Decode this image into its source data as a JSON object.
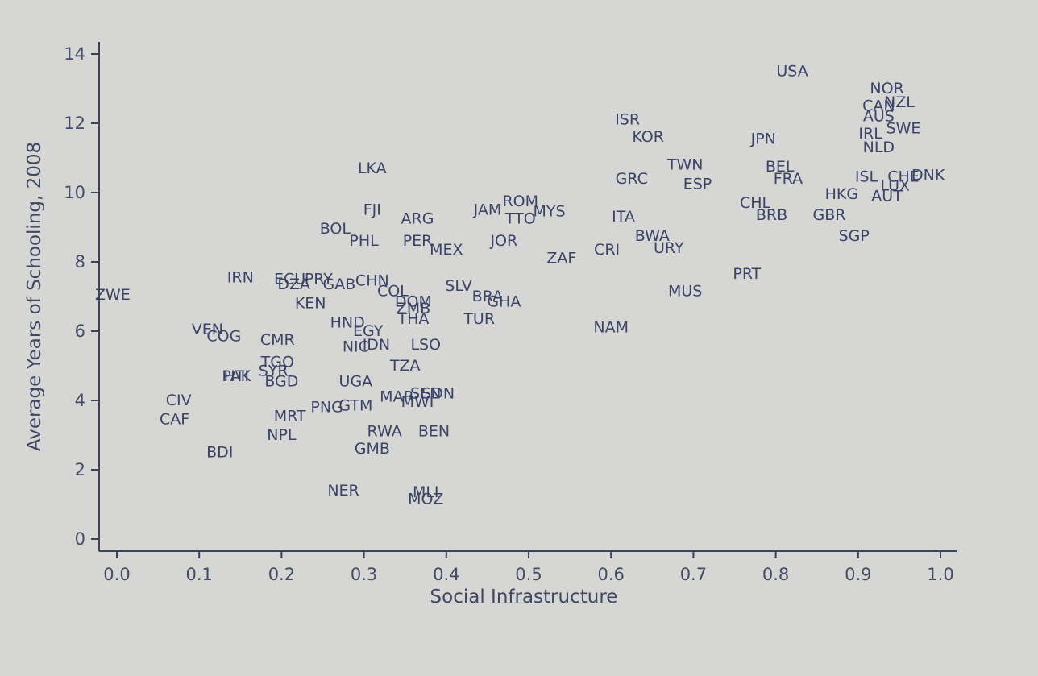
{
  "chart_data": {
    "type": "scatter",
    "title": "",
    "xlabel": "Social Infrastructure",
    "ylabel": "Average Years of Schooling, 2008",
    "xlim": [
      -0.02,
      1.02
    ],
    "ylim": [
      -0.35,
      14.4
    ],
    "xticks": [
      "0.0",
      "0.1",
      "0.2",
      "0.3",
      "0.4",
      "0.5",
      "0.6",
      "0.7",
      "0.8",
      "0.9",
      "1.0"
    ],
    "yticks": [
      "0",
      "2",
      "4",
      "6",
      "8",
      "10",
      "12",
      "14"
    ],
    "grid": false,
    "points": [
      {
        "label": "USA",
        "x": 0.82,
        "y": 13.5
      },
      {
        "label": "NOR",
        "x": 0.935,
        "y": 13.0
      },
      {
        "label": "NZL",
        "x": 0.95,
        "y": 12.6
      },
      {
        "label": "CAN",
        "x": 0.925,
        "y": 12.5
      },
      {
        "label": "AUS",
        "x": 0.925,
        "y": 12.2
      },
      {
        "label": "SWE",
        "x": 0.955,
        "y": 11.85
      },
      {
        "label": "IRL",
        "x": 0.915,
        "y": 11.7
      },
      {
        "label": "NLD",
        "x": 0.925,
        "y": 11.3
      },
      {
        "label": "ISR",
        "x": 0.62,
        "y": 12.1
      },
      {
        "label": "KOR",
        "x": 0.645,
        "y": 11.6
      },
      {
        "label": "JPN",
        "x": 0.785,
        "y": 11.55
      },
      {
        "label": "TWN",
        "x": 0.69,
        "y": 10.8
      },
      {
        "label": "BEL",
        "x": 0.805,
        "y": 10.75
      },
      {
        "label": "FRA",
        "x": 0.815,
        "y": 10.4
      },
      {
        "label": "ISL",
        "x": 0.91,
        "y": 10.45
      },
      {
        "label": "CHE",
        "x": 0.955,
        "y": 10.45
      },
      {
        "label": "DNK",
        "x": 0.985,
        "y": 10.5
      },
      {
        "label": "LUX",
        "x": 0.945,
        "y": 10.2
      },
      {
        "label": "AUT",
        "x": 0.935,
        "y": 9.9
      },
      {
        "label": "HKG",
        "x": 0.88,
        "y": 9.95
      },
      {
        "label": "GRC",
        "x": 0.625,
        "y": 10.4
      },
      {
        "label": "ESP",
        "x": 0.705,
        "y": 10.25
      },
      {
        "label": "CHL",
        "x": 0.775,
        "y": 9.7
      },
      {
        "label": "BRB",
        "x": 0.795,
        "y": 9.35
      },
      {
        "label": "GBR",
        "x": 0.865,
        "y": 9.35
      },
      {
        "label": "SGP",
        "x": 0.895,
        "y": 8.75
      },
      {
        "label": "LKA",
        "x": 0.31,
        "y": 10.7
      },
      {
        "label": "FJI",
        "x": 0.31,
        "y": 9.5
      },
      {
        "label": "ARG",
        "x": 0.365,
        "y": 9.25
      },
      {
        "label": "ROM",
        "x": 0.49,
        "y": 9.75
      },
      {
        "label": "JAM",
        "x": 0.45,
        "y": 9.5
      },
      {
        "label": "MYS",
        "x": 0.525,
        "y": 9.45
      },
      {
        "label": "TTO",
        "x": 0.49,
        "y": 9.25
      },
      {
        "label": "ITA",
        "x": 0.615,
        "y": 9.3
      },
      {
        "label": "BOL",
        "x": 0.265,
        "y": 8.95
      },
      {
        "label": "PHL",
        "x": 0.3,
        "y": 8.6
      },
      {
        "label": "PER",
        "x": 0.365,
        "y": 8.6
      },
      {
        "label": "MEX",
        "x": 0.4,
        "y": 8.35
      },
      {
        "label": "JOR",
        "x": 0.47,
        "y": 8.6
      },
      {
        "label": "BWA",
        "x": 0.65,
        "y": 8.75
      },
      {
        "label": "URY",
        "x": 0.67,
        "y": 8.4
      },
      {
        "label": "CRI",
        "x": 0.595,
        "y": 8.35
      },
      {
        "label": "ZAF",
        "x": 0.54,
        "y": 8.1
      },
      {
        "label": "PRT",
        "x": 0.765,
        "y": 7.65
      },
      {
        "label": "MUS",
        "x": 0.69,
        "y": 7.15
      },
      {
        "label": "IRN",
        "x": 0.15,
        "y": 7.55
      },
      {
        "label": "ECU",
        "x": 0.21,
        "y": 7.5
      },
      {
        "label": "PRY",
        "x": 0.245,
        "y": 7.5
      },
      {
        "label": "CHN",
        "x": 0.31,
        "y": 7.45
      },
      {
        "label": "DZA",
        "x": 0.215,
        "y": 7.35
      },
      {
        "label": "GAB",
        "x": 0.27,
        "y": 7.35
      },
      {
        "label": "COL",
        "x": 0.335,
        "y": 7.15
      },
      {
        "label": "SLV",
        "x": 0.415,
        "y": 7.3
      },
      {
        "label": "BRA",
        "x": 0.45,
        "y": 7.0
      },
      {
        "label": "GHA",
        "x": 0.47,
        "y": 6.85
      },
      {
        "label": "ZWE",
        "x": -0.005,
        "y": 7.05
      },
      {
        "label": "KEN",
        "x": 0.235,
        "y": 6.8
      },
      {
        "label": "DOM",
        "x": 0.36,
        "y": 6.85
      },
      {
        "label": "ZMB",
        "x": 0.36,
        "y": 6.65
      },
      {
        "label": "TUR",
        "x": 0.44,
        "y": 6.35
      },
      {
        "label": "THA",
        "x": 0.36,
        "y": 6.35
      },
      {
        "label": "HND",
        "x": 0.28,
        "y": 6.25
      },
      {
        "label": "EGY",
        "x": 0.305,
        "y": 6.0
      },
      {
        "label": "NAM",
        "x": 0.6,
        "y": 6.1
      },
      {
        "label": "VEN",
        "x": 0.11,
        "y": 6.05
      },
      {
        "label": "COG",
        "x": 0.13,
        "y": 5.85
      },
      {
        "label": "CMR",
        "x": 0.195,
        "y": 5.75
      },
      {
        "label": "NIC",
        "x": 0.29,
        "y": 5.55
      },
      {
        "label": "IDN",
        "x": 0.315,
        "y": 5.6
      },
      {
        "label": "LSO",
        "x": 0.375,
        "y": 5.6
      },
      {
        "label": "TGO",
        "x": 0.195,
        "y": 5.1
      },
      {
        "label": "TZA",
        "x": 0.35,
        "y": 5.0
      },
      {
        "label": "SYR",
        "x": 0.19,
        "y": 4.85
      },
      {
        "label": "PAK",
        "x": 0.145,
        "y": 4.7
      },
      {
        "label": "HTI",
        "x": 0.145,
        "y": 4.7
      },
      {
        "label": "BGD",
        "x": 0.2,
        "y": 4.55
      },
      {
        "label": "UGA",
        "x": 0.29,
        "y": 4.55
      },
      {
        "label": "SEN",
        "x": 0.375,
        "y": 4.2
      },
      {
        "label": "MAR",
        "x": 0.34,
        "y": 4.1
      },
      {
        "label": "SDN",
        "x": 0.39,
        "y": 4.2
      },
      {
        "label": "MWI",
        "x": 0.365,
        "y": 3.95
      },
      {
        "label": "CIV",
        "x": 0.075,
        "y": 4.0
      },
      {
        "label": "PNG",
        "x": 0.255,
        "y": 3.8
      },
      {
        "label": "GTM",
        "x": 0.29,
        "y": 3.85
      },
      {
        "label": "MRT",
        "x": 0.21,
        "y": 3.55
      },
      {
        "label": "CAF",
        "x": 0.07,
        "y": 3.45
      },
      {
        "label": "RWA",
        "x": 0.325,
        "y": 3.1
      },
      {
        "label": "BEN",
        "x": 0.385,
        "y": 3.1
      },
      {
        "label": "NPL",
        "x": 0.2,
        "y": 3.0
      },
      {
        "label": "GMB",
        "x": 0.31,
        "y": 2.6
      },
      {
        "label": "BDI",
        "x": 0.125,
        "y": 2.5
      },
      {
        "label": "NER",
        "x": 0.275,
        "y": 1.4
      },
      {
        "label": "MLI",
        "x": 0.375,
        "y": 1.35
      },
      {
        "label": "MOZ",
        "x": 0.375,
        "y": 1.15
      }
    ]
  },
  "colors": {
    "background": "#d6d6d4",
    "text": "#3b4466",
    "axis": "#3c4258"
  }
}
